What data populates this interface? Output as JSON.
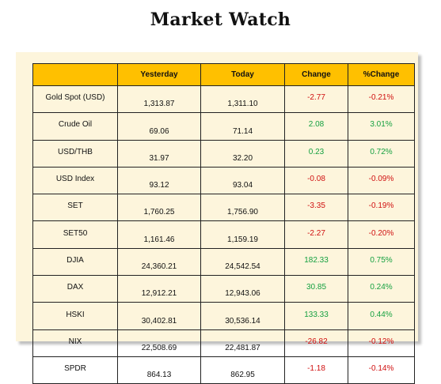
{
  "title": "Market Watch",
  "headers": [
    "",
    "Yesterday",
    "Today",
    "Change",
    "%Change"
  ],
  "colors": {
    "header_bg": "#ffc000",
    "panel_bg": "#fdf5dc",
    "negative": "#d01010",
    "positive": "#15a040"
  },
  "rows": [
    {
      "name": "Gold Spot (USD)",
      "yesterday": "1,313.87",
      "today": "1,311.10",
      "change": "-2.77",
      "pct": "-0.21%",
      "dir": "neg"
    },
    {
      "name": "Crude Oil",
      "yesterday": "69.06",
      "today": "71.14",
      "change": "2.08",
      "pct": "3.01%",
      "dir": "pos"
    },
    {
      "name": "USD/THB",
      "yesterday": "31.97",
      "today": "32.20",
      "change": "0.23",
      "pct": "0.72%",
      "dir": "pos"
    },
    {
      "name": "USD Index",
      "yesterday": "93.12",
      "today": "93.04",
      "change": "-0.08",
      "pct": "-0.09%",
      "dir": "neg"
    },
    {
      "name": "SET",
      "yesterday": "1,760.25",
      "today": "1,756.90",
      "change": "-3.35",
      "pct": "-0.19%",
      "dir": "neg"
    },
    {
      "name": "SET50",
      "yesterday": "1,161.46",
      "today": "1,159.19",
      "change": "-2.27",
      "pct": "-0.20%",
      "dir": "neg"
    },
    {
      "name": "DJIA",
      "yesterday": "24,360.21",
      "today": "24,542.54",
      "change": "182.33",
      "pct": "0.75%",
      "dir": "pos"
    },
    {
      "name": "DAX",
      "yesterday": "12,912.21",
      "today": "12,943.06",
      "change": "30.85",
      "pct": "0.24%",
      "dir": "pos"
    },
    {
      "name": "HSKI",
      "yesterday": "30,402.81",
      "today": "30,536.14",
      "change": "133.33",
      "pct": "0.44%",
      "dir": "pos"
    },
    {
      "name": "NIX",
      "yesterday": "22,508.69",
      "today": "22,481.87",
      "change": "-26.82",
      "pct": "-0.12%",
      "dir": "neg"
    },
    {
      "name": "SPDR",
      "yesterday": "864.13",
      "today": "862.95",
      "change": "-1.18",
      "pct": "-0.14%",
      "dir": "neg"
    }
  ]
}
